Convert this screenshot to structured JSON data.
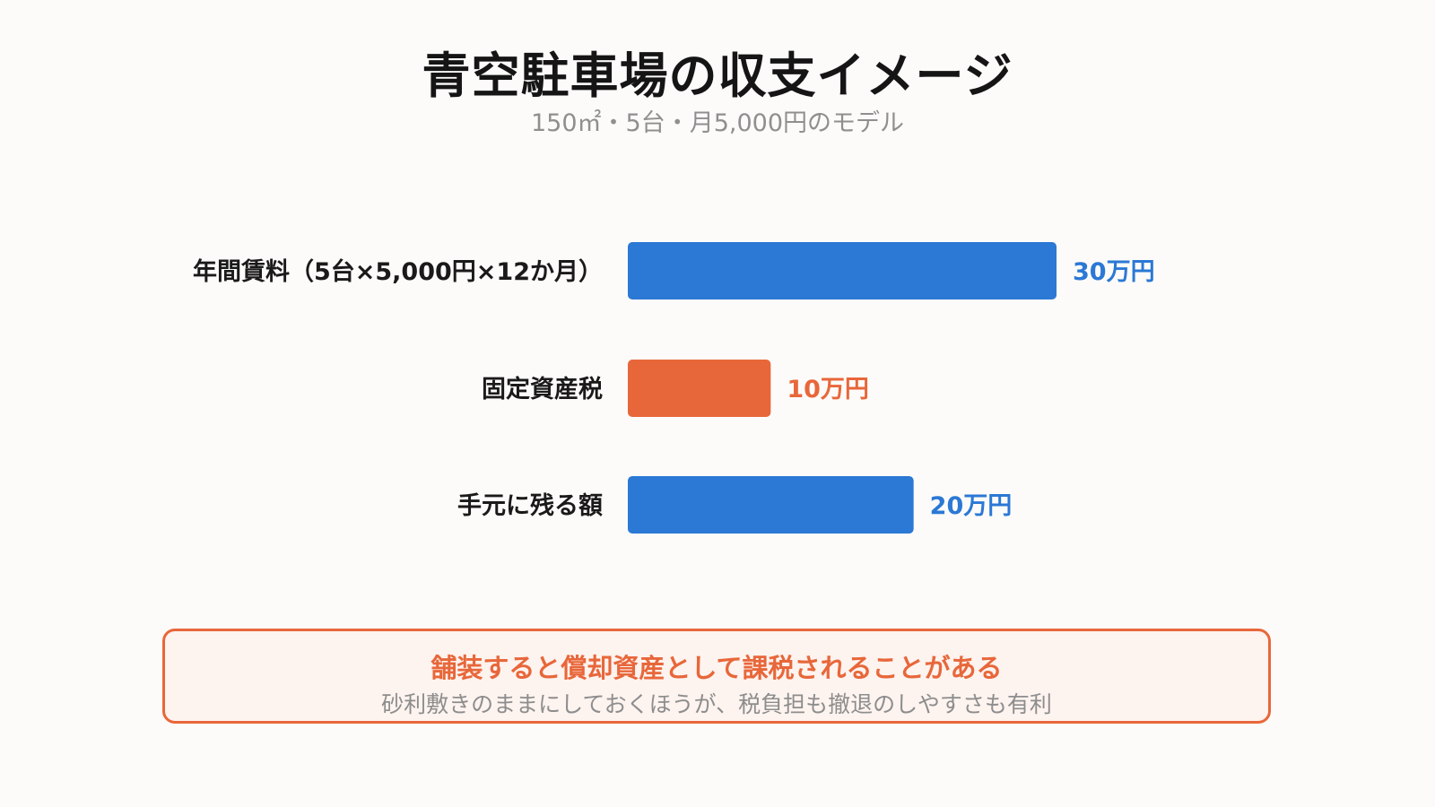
{
  "title": "青空駐車場の収支イメージ",
  "subtitle": "150㎡・5台・月5,000円のモデル",
  "colors": {
    "income": "#2b78d5",
    "expense": "#e8673a",
    "background": "#fcfbf9"
  },
  "chart_data": {
    "type": "bar",
    "orientation": "horizontal",
    "unit": "万円",
    "categories": [
      "年間賃料（5台×5,000円×12か月）",
      "固定資産税",
      "手元に残る額"
    ],
    "values": [
      30,
      10,
      20
    ],
    "value_labels": [
      "30万円",
      "10万円",
      "20万円"
    ],
    "bar_colors": [
      "#2b78d5",
      "#e8673a",
      "#2b78d5"
    ],
    "grid": false,
    "legend": "none"
  },
  "note": {
    "title": "舗装すると償却資産として課税されることがある",
    "text": "砂利敷きのままにしておくほうが、税負担も撤退のしやすさも有利"
  }
}
